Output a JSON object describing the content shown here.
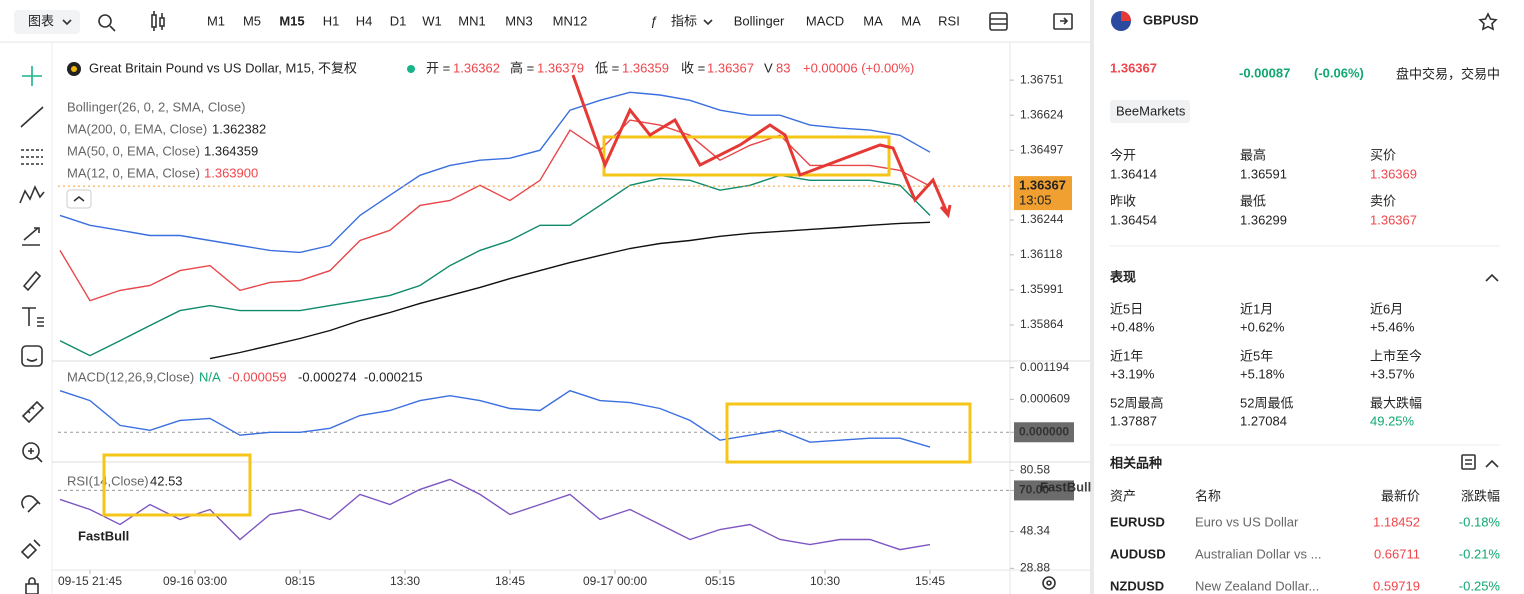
{
  "toolbar": {
    "chart_menu": "图表",
    "timeframes": [
      "M1",
      "M5",
      "M15",
      "H1",
      "H4",
      "D1",
      "W1",
      "MN1",
      "MN3",
      "MN12"
    ],
    "active_timeframe": 2,
    "indicators_menu": "指标",
    "indicators": [
      "Bollinger",
      "MACD",
      "MA",
      "MA",
      "RSI"
    ]
  },
  "header": {
    "title": "Great Britain Pound vs US Dollar, M15, 不复权",
    "quotes": [
      {
        "label": "开 =",
        "value": "1.36362"
      },
      {
        "label": "高 =",
        "value": "1.36379"
      },
      {
        "label": "低 =",
        "value": "1.36359"
      },
      {
        "label": "收 =",
        "value": "1.36367"
      },
      {
        "label": "V",
        "value": "83"
      }
    ],
    "change": "+0.00006 (+0.00%)"
  },
  "watermark": "FastBull",
  "chart_data": [
    {
      "type": "line",
      "legend": [
        {
          "label": "Bollinger(26, 0, 2, SMA, Close)"
        },
        {
          "label": "MA(200, 0, EMA, Close)",
          "value": "1.362382"
        },
        {
          "label": "MA(50, 0, EMA, Close)",
          "value": "1.364359"
        },
        {
          "label": "MA(12, 0, EMA, Close)",
          "value": "1.363900"
        }
      ],
      "last_price": {
        "price": "1.36367",
        "countdown": "13:05"
      },
      "x": [
        -6,
        0,
        6,
        12,
        18,
        24,
        30,
        36,
        42,
        48,
        54,
        60,
        66,
        72,
        78,
        84,
        90,
        96,
        102,
        108,
        114,
        120,
        126,
        132,
        138,
        144,
        150,
        156,
        162,
        168
      ],
      "xlim": [
        -6.4,
        184
      ],
      "ylim": [
        1.35737,
        1.36842
      ],
      "yticks": [
        1.36751,
        1.36624,
        1.36497,
        1.36244,
        1.36118,
        1.35991,
        1.35864
      ],
      "series": [
        {
          "color": "#e8464a",
          "values": [
            1.36134,
            1.35952,
            1.35989,
            1.36007,
            1.36061,
            1.36079,
            1.35989,
            1.36018,
            1.36025,
            1.36061,
            1.3617,
            1.36207,
            1.36297,
            1.36315,
            1.3637,
            1.36315,
            1.36388,
            1.3657,
            1.36497,
            1.36606,
            1.36588,
            1.36551,
            1.36461,
            1.36515,
            1.36551,
            1.36442,
            1.36442,
            1.36442,
            1.36424,
            1.36367
          ]
        },
        {
          "color": "#111111",
          "values": [
            null,
            null,
            null,
            null,
            null,
            1.35742,
            1.35764,
            1.35789,
            1.35815,
            1.35844,
            1.3588,
            1.35909,
            1.35942,
            1.35971,
            1.36,
            1.36032,
            1.36061,
            1.3609,
            1.36116,
            1.36141,
            1.36159,
            1.3617,
            1.36185,
            1.36196,
            1.36203,
            1.3621,
            1.36217,
            1.36225,
            1.36232,
            1.36236
          ]
        },
        {
          "color": "#3a6fe0",
          "values": [
            1.36261,
            1.36225,
            1.36207,
            1.36188,
            1.36188,
            1.3617,
            1.36152,
            1.36134,
            1.36127,
            1.36152,
            1.36261,
            1.36334,
            1.36406,
            1.36442,
            1.36461,
            1.36468,
            1.36497,
            1.36642,
            1.36678,
            1.36707,
            1.36697,
            1.36678,
            1.36642,
            1.36624,
            1.36624,
            1.36588,
            1.36577,
            1.3657,
            1.36551,
            1.3649
          ]
        },
        {
          "color": "#0f8a6a",
          "values": [
            1.35807,
            1.35753,
            1.35807,
            1.35862,
            1.35916,
            1.35934,
            1.35916,
            1.35916,
            1.35916,
            1.35934,
            1.35952,
            1.35971,
            1.36007,
            1.36079,
            1.36134,
            1.3617,
            1.36225,
            1.36225,
            1.36297,
            1.3637,
            1.36395,
            1.36388,
            1.36352,
            1.3637,
            1.36406,
            1.36388,
            1.36388,
            1.36388,
            1.3637,
            1.36261
          ]
        }
      ]
    },
    {
      "type": "line",
      "legend": [
        {
          "label": "MACD(12,26,9,Close)",
          "values": [
            "N/A",
            "-0.000059",
            "-0.000274",
            "-0.000215"
          ]
        }
      ],
      "x": [
        -6,
        0,
        6,
        12,
        18,
        24,
        30,
        36,
        42,
        48,
        54,
        60,
        66,
        72,
        78,
        84,
        90,
        96,
        102,
        108,
        114,
        120,
        126,
        132,
        138,
        144,
        150,
        156,
        162,
        168
      ],
      "xlim": [
        -6.4,
        184
      ],
      "ylim": [
        -0.00055,
        0.0013
      ],
      "yticks": [
        0.001194,
        0.000609,
        {
          "value": 0,
          "label": "0.000000"
        }
      ],
      "series": [
        {
          "color": "#3a6fe0",
          "values": [
            0.000769,
            0.000586,
            0.000128,
            3.7e-05,
            0.00022,
            0.000256,
            -5.5e-05,
            0,
            0,
            7.3e-05,
            0.000311,
            0.000403,
            0.000586,
            0.000677,
            0.000586,
            0.000439,
            0.000403,
            0.000769,
            0.000586,
            0.000549,
            0.000439,
            0.00022,
            -0.000146,
            -5.5e-05,
            3.7e-05,
            -0.000183,
            -0.000146,
            -0.00011,
            -0.00011,
            -0.000275
          ]
        }
      ]
    },
    {
      "type": "line",
      "legend": [
        {
          "label": "RSI(14,Close)",
          "values": [
            "42.53"
          ]
        }
      ],
      "x": [
        -6,
        0,
        6,
        12,
        18,
        24,
        30,
        36,
        42,
        48,
        54,
        60,
        66,
        72,
        78,
        84,
        90,
        96,
        102,
        108,
        114,
        120,
        126,
        132,
        138,
        144,
        150,
        156,
        162,
        168
      ],
      "xlim": [
        -6.4,
        184
      ],
      "ylim": [
        28,
        85
      ],
      "yticks": [
        80.58,
        {
          "value": 70,
          "label": "70.00"
        },
        48.34,
        28.88
      ],
      "xticks": [
        {
          "value": 0,
          "label": "09-15 21:45"
        },
        {
          "value": 21,
          "label": "09-16 03:00"
        },
        {
          "value": 42,
          "label": "08:15"
        },
        {
          "value": 63,
          "label": "13:30"
        },
        {
          "value": 84,
          "label": "18:45"
        },
        {
          "value": 105,
          "label": "09-17 00:00"
        },
        {
          "value": 126,
          "label": "05:15"
        },
        {
          "value": 147,
          "label": "10:30"
        },
        {
          "value": 168,
          "label": "15:45"
        }
      ],
      "series": [
        {
          "color": "#7e57c2",
          "values": [
            65.24,
            59.95,
            52.01,
            62.59,
            54.66,
            59.95,
            44.08,
            57.3,
            59.95,
            54.66,
            67.88,
            62.59,
            70.53,
            75.82,
            67.88,
            57.3,
            62.59,
            67.88,
            54.66,
            59.95,
            52.01,
            44.08,
            49.37,
            52.01,
            44.08,
            41.43,
            44.08,
            44.08,
            38.79,
            41.43
          ]
        }
      ]
    }
  ],
  "panel": {
    "symbol": "GBPUSD",
    "price": "1.36367",
    "change": "-0.00087",
    "change_pct": "(-0.06%)",
    "status": "盘中交易，交易中",
    "broker": "BeeMarkets",
    "stats": [
      {
        "label": "今开",
        "value": "1.36414"
      },
      {
        "label": "最高",
        "value": "1.36591"
      },
      {
        "label": "买价",
        "value": "1.36369"
      },
      {
        "label": "昨收",
        "value": "1.36454"
      },
      {
        "label": "最低",
        "value": "1.36299"
      },
      {
        "label": "卖价",
        "value": "1.36367"
      }
    ],
    "performance_title": "表现",
    "performance": [
      {
        "label": "近5日",
        "value": "+0.48%"
      },
      {
        "label": "近1月",
        "value": "+0.62%"
      },
      {
        "label": "近6月",
        "value": "+5.46%"
      },
      {
        "label": "近1年",
        "value": "+3.19%"
      },
      {
        "label": "近5年",
        "value": "+5.18%"
      },
      {
        "label": "上市至今",
        "value": "+3.57%"
      },
      {
        "label": "52周最高",
        "value": "1.37887"
      },
      {
        "label": "52周最低",
        "value": "1.27084"
      },
      {
        "label": "最大跌幅",
        "value": "49.25%"
      }
    ],
    "related_title": "相关品种",
    "related_headers": [
      "资产",
      "名称",
      "最新价",
      "涨跌幅"
    ],
    "related": [
      [
        "EURUSD",
        "Euro vs US Dollar",
        "1.18452",
        "-0.18%"
      ],
      [
        "AUDUSD",
        "Australian Dollar vs ...",
        "0.66711",
        "-0.21%"
      ],
      [
        "NZDUSD",
        "New Zealand Dollar...",
        "0.59719",
        "-0.25%"
      ]
    ]
  }
}
